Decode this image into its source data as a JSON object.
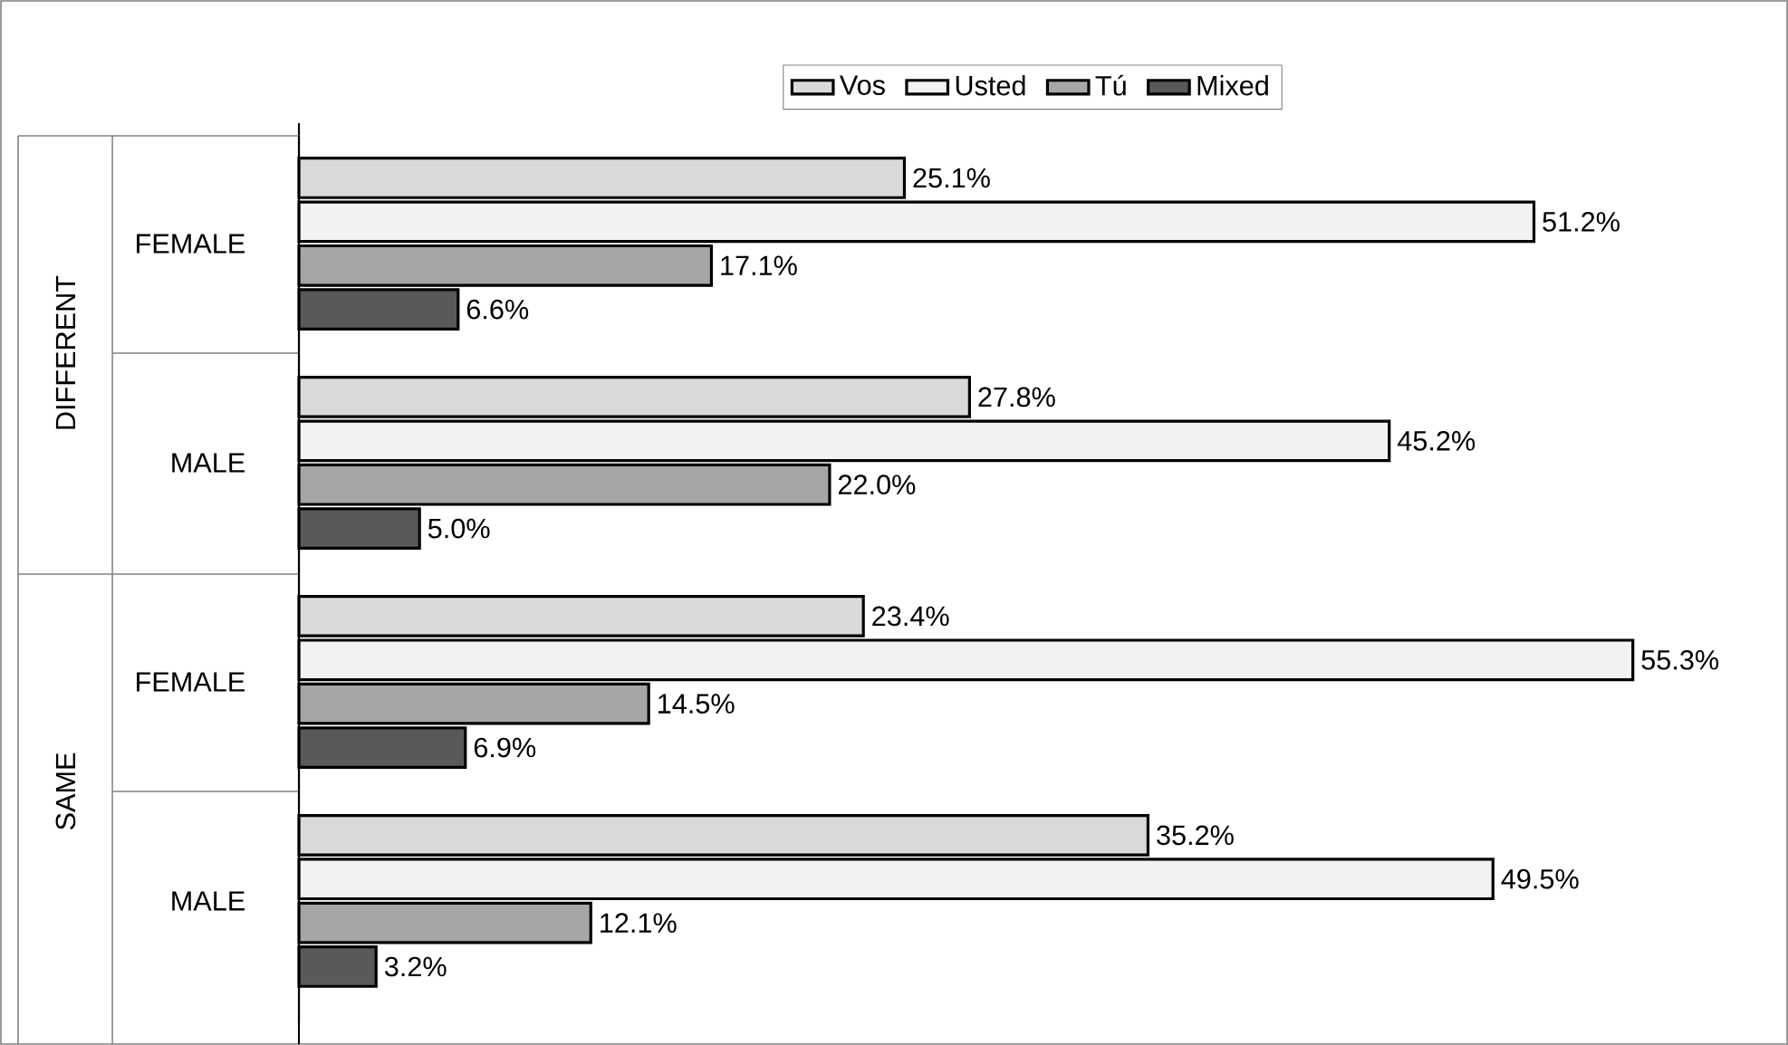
{
  "chart_data": {
    "type": "bar",
    "orientation": "horizontal",
    "categories": [
      "FEMALE",
      "MALE",
      "FEMALE",
      "MALE"
    ],
    "series": [
      {
        "name": "Vos",
        "color": "#d9d9d9",
        "values": [
          25.1,
          27.8,
          23.4,
          35.2
        ],
        "value_labels": [
          "25.1%",
          "27.8%",
          "23.4%",
          "35.2%"
        ]
      },
      {
        "name": "Usted",
        "color": "#f2f2f2",
        "values": [
          51.2,
          45.2,
          55.3,
          49.5
        ],
        "value_labels": [
          "51.2%",
          "45.2%",
          "55.3%",
          "49.5%"
        ]
      },
      {
        "name": "Tú",
        "color": "#a6a6a6",
        "values": [
          17.1,
          22.0,
          14.5,
          12.1
        ],
        "value_labels": [
          "17.1%",
          "22.0%",
          "14.5%",
          "12.1%"
        ]
      },
      {
        "name": "Mixed",
        "color": "#595959",
        "values": [
          6.6,
          5.0,
          6.9,
          3.2
        ],
        "value_labels": [
          "6.6%",
          "5.0%",
          "6.9%",
          "3.2%"
        ]
      }
    ],
    "annotations": [
      "DIFFERENT",
      "SAME"
    ],
    "tick_labels": "y",
    "legend": "top",
    "grid": false
  }
}
